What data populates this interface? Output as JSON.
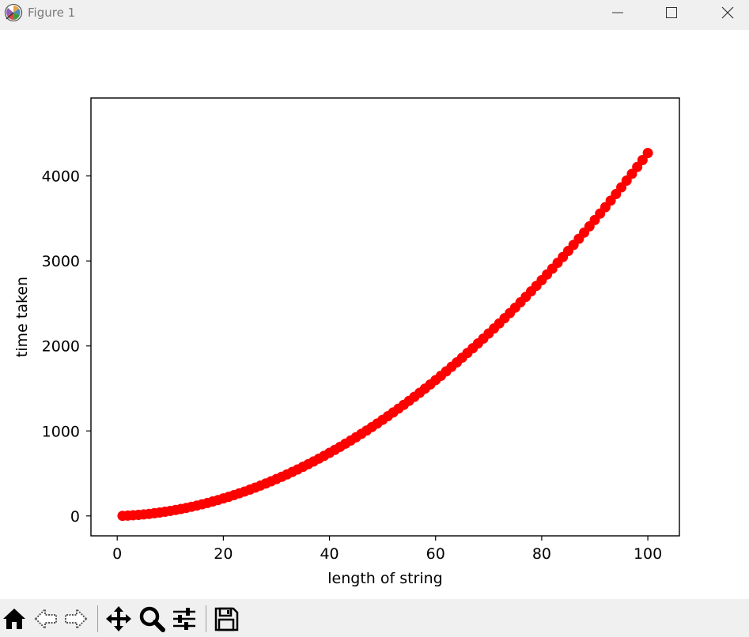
{
  "window": {
    "title": "Figure 1",
    "minimize_icon": "minimize-icon",
    "maximize_icon": "maximize-icon",
    "close_icon": "close-icon"
  },
  "toolbar": {
    "buttons": [
      {
        "name": "home-button",
        "icon": "home-icon"
      },
      {
        "name": "back-button",
        "icon": "back-arrow-icon"
      },
      {
        "name": "forward-button",
        "icon": "forward-arrow-icon"
      },
      {
        "name": "pan-button",
        "icon": "move-icon"
      },
      {
        "name": "zoom-button",
        "icon": "magnifier-icon"
      },
      {
        "name": "configure-subplots-button",
        "icon": "sliders-icon"
      },
      {
        "name": "save-button",
        "icon": "floppy-disk-icon"
      }
    ]
  },
  "chart_data": {
    "type": "scatter",
    "title": "",
    "xlabel": "length of string",
    "ylabel": "time taken",
    "xlim": [
      -4.95,
      105.95
    ],
    "ylim": [
      -234.25,
      4917.25
    ],
    "xticks": [
      0,
      20,
      40,
      60,
      80,
      100
    ],
    "yticks": [
      0,
      1000,
      2000,
      3000,
      4000
    ],
    "grid": false,
    "marker_color": "#ff0000",
    "series": [
      {
        "name": "",
        "x": [
          1,
          2,
          3,
          4,
          5,
          6,
          7,
          8,
          9,
          10,
          11,
          12,
          13,
          14,
          15,
          16,
          17,
          18,
          19,
          20,
          21,
          22,
          23,
          24,
          25,
          26,
          27,
          28,
          29,
          30,
          31,
          32,
          33,
          34,
          35,
          36,
          37,
          38,
          39,
          40,
          41,
          42,
          43,
          44,
          45,
          46,
          47,
          48,
          49,
          50,
          51,
          52,
          53,
          54,
          55,
          56,
          57,
          58,
          59,
          60,
          61,
          62,
          63,
          64,
          65,
          66,
          67,
          68,
          69,
          70,
          71,
          72,
          73,
          74,
          75,
          76,
          77,
          78,
          79,
          80,
          81,
          82,
          83,
          84,
          85,
          86,
          87,
          88,
          89,
          90,
          91,
          92,
          93,
          94,
          95,
          96,
          97,
          98,
          99,
          100
        ],
        "y": [
          1,
          4,
          8,
          12,
          18,
          24,
          32,
          40,
          49,
          59,
          70,
          82,
          94,
          108,
          122,
          137,
          153,
          170,
          187,
          206,
          225,
          245,
          266,
          287,
          310,
          333,
          357,
          382,
          407,
          434,
          461,
          489,
          518,
          547,
          578,
          609,
          641,
          674,
          707,
          742,
          777,
          813,
          850,
          887,
          926,
          965,
          1005,
          1046,
          1087,
          1130,
          1173,
          1217,
          1262,
          1307,
          1354,
          1401,
          1449,
          1498,
          1547,
          1598,
          1649,
          1701,
          1754,
          1807,
          1862,
          1917,
          1973,
          2030,
          2087,
          2146,
          2205,
          2265,
          2326,
          2387,
          2450,
          2513,
          2577,
          2642,
          2707,
          2774,
          2841,
          2909,
          2978,
          3047,
          3118,
          3189,
          3261,
          3334,
          3407,
          3482,
          3557,
          3633,
          3710,
          3787,
          3866,
          3945,
          4025,
          4106,
          4187,
          4270
        ]
      }
    ]
  }
}
